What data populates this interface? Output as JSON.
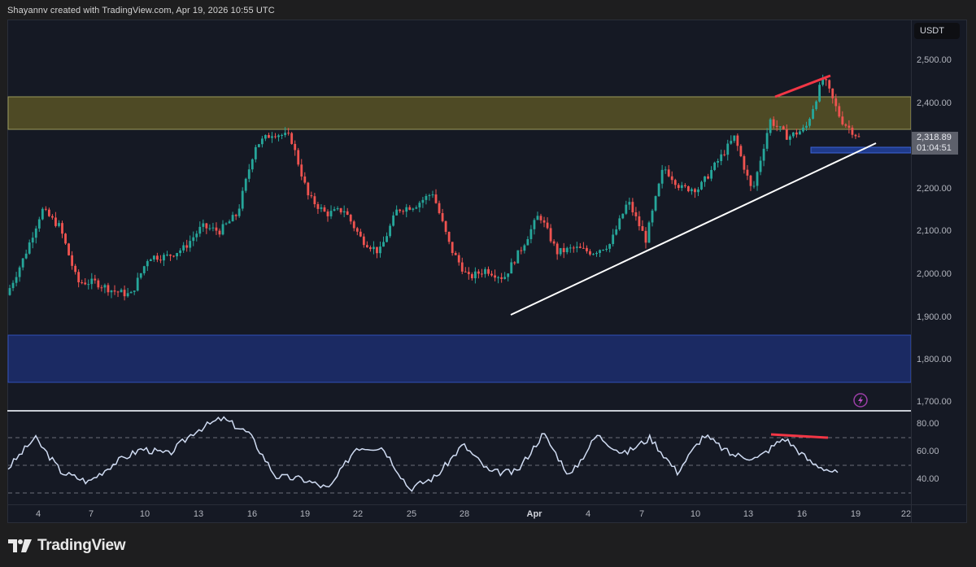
{
  "caption": "Shayannv created with TradingView.com, Apr 19, 2026 10:55 UTC",
  "brand": {
    "name": "TradingView",
    "icon": "tradingview-logo-icon"
  },
  "price_axis": {
    "currency": "USDT",
    "ticks": [
      "2,500.00",
      "2,400.00",
      "2,200.00",
      "2,100.00",
      "2,000.00",
      "1,900.00",
      "1,800.00",
      "1,700.00"
    ],
    "last_price": "2,318.89",
    "countdown": "01:04:51"
  },
  "rsi_axis": {
    "ticks": [
      "80.00",
      "60.00",
      "40.00"
    ]
  },
  "time_axis": {
    "ticks": [
      "4",
      "7",
      "10",
      "13",
      "16",
      "19",
      "22",
      "25",
      "28",
      "Apr",
      "4",
      "7",
      "10",
      "13",
      "16",
      "19",
      "22"
    ]
  },
  "colors": {
    "background": "#151924",
    "up_candle": "#26a69a",
    "down_candle": "#ef5350",
    "resistance_zone": "#4e4a25",
    "support_zone": "#1b2a63",
    "trendline": "#ffffff",
    "divergence": "#f23645",
    "rsi_line": "#c9d7f0"
  },
  "chart_data": [
    {
      "type": "candlestick",
      "title": "ETH/USDT 4H (approx.)",
      "xlabel": "",
      "ylabel": "USDT",
      "ylim": [
        1680,
        2540
      ],
      "x_ticks": [
        "Mar 4",
        "Mar 7",
        "Mar 10",
        "Mar 13",
        "Mar 16",
        "Mar 19",
        "Mar 22",
        "Mar 25",
        "Mar 28",
        "Apr",
        "Apr 4",
        "Apr 7",
        "Apr 10",
        "Apr 13",
        "Apr 16",
        "Apr 19",
        "Apr 22"
      ],
      "approx_close_path": [
        {
          "x": "Mar 2",
          "y": 1950
        },
        {
          "x": "Mar 3",
          "y": 2040
        },
        {
          "x": "Mar 4",
          "y": 2150
        },
        {
          "x": "Mar 5",
          "y": 2110
        },
        {
          "x": "Mar 6",
          "y": 1980
        },
        {
          "x": "Mar 7",
          "y": 1980
        },
        {
          "x": "Mar 8",
          "y": 1960
        },
        {
          "x": "Mar 9",
          "y": 1950
        },
        {
          "x": "Mar 10",
          "y": 2040
        },
        {
          "x": "Mar 11",
          "y": 2040
        },
        {
          "x": "Mar 12",
          "y": 2060
        },
        {
          "x": "Mar 13",
          "y": 2110
        },
        {
          "x": "Mar 14",
          "y": 2100
        },
        {
          "x": "Mar 15",
          "y": 2140
        },
        {
          "x": "Mar 16",
          "y": 2300
        },
        {
          "x": "Mar 17",
          "y": 2330
        },
        {
          "x": "Mar 18",
          "y": 2320
        },
        {
          "x": "Mar 19",
          "y": 2180
        },
        {
          "x": "Mar 20",
          "y": 2140
        },
        {
          "x": "Mar 21",
          "y": 2150
        },
        {
          "x": "Mar 22",
          "y": 2080
        },
        {
          "x": "Mar 23",
          "y": 2050
        },
        {
          "x": "Mar 24",
          "y": 2150
        },
        {
          "x": "Mar 25",
          "y": 2160
        },
        {
          "x": "Mar 26",
          "y": 2190
        },
        {
          "x": "Mar 27",
          "y": 2060
        },
        {
          "x": "Mar 28",
          "y": 1990
        },
        {
          "x": "Mar 29",
          "y": 2010
        },
        {
          "x": "Mar 30",
          "y": 1990
        },
        {
          "x": "Mar 31",
          "y": 2060
        },
        {
          "x": "Apr 1",
          "y": 2140
        },
        {
          "x": "Apr 2",
          "y": 2050
        },
        {
          "x": "Apr 3",
          "y": 2060
        },
        {
          "x": "Apr 4",
          "y": 2050
        },
        {
          "x": "Apr 5",
          "y": 2070
        },
        {
          "x": "Apr 6",
          "y": 2170
        },
        {
          "x": "Apr 7",
          "y": 2080
        },
        {
          "x": "Apr 8",
          "y": 2250
        },
        {
          "x": "Apr 9",
          "y": 2200
        },
        {
          "x": "Apr 10",
          "y": 2200
        },
        {
          "x": "Apr 11",
          "y": 2260
        },
        {
          "x": "Apr 12",
          "y": 2320
        },
        {
          "x": "Apr 13",
          "y": 2190
        },
        {
          "x": "Apr 14",
          "y": 2360
        },
        {
          "x": "Apr 15",
          "y": 2320
        },
        {
          "x": "Apr 16",
          "y": 2340
        },
        {
          "x": "Apr 17",
          "y": 2460
        },
        {
          "x": "Apr 18",
          "y": 2360
        },
        {
          "x": "Apr 19",
          "y": 2319
        }
      ],
      "zones": [
        {
          "name": "resistance",
          "from": 2340,
          "to": 2415,
          "color": "#4e4a25"
        },
        {
          "name": "support",
          "from": 1745,
          "to": 1855,
          "color": "#1b2a63"
        },
        {
          "name": "local-support",
          "from": 2285,
          "to": 2300,
          "color": "#1f3a8a"
        }
      ],
      "annotations": [
        {
          "type": "trendline",
          "from": {
            "x": "Mar 31",
            "y": 1905
          },
          "to": {
            "x": "Apr 19",
            "y": 2305
          },
          "color": "#ffffff"
        },
        {
          "type": "higher-high line",
          "from": {
            "x": "Apr 14",
            "y": 2415
          },
          "to": {
            "x": "Apr 17",
            "y": 2465
          },
          "color": "#f23645"
        }
      ],
      "last_price": 2318.89
    },
    {
      "type": "line",
      "title": "RSI",
      "ylim": [
        25,
        85
      ],
      "reference_lines": [
        70,
        50,
        30
      ],
      "y_ticks": [
        "80.00",
        "60.00",
        "40.00"
      ],
      "approx_values": [
        {
          "x": "Mar 2",
          "y": 48
        },
        {
          "x": "Mar 4",
          "y": 70
        },
        {
          "x": "Mar 6",
          "y": 45
        },
        {
          "x": "Mar 8",
          "y": 38
        },
        {
          "x": "Mar 10",
          "y": 52
        },
        {
          "x": "Mar 12",
          "y": 62
        },
        {
          "x": "Mar 14",
          "y": 58
        },
        {
          "x": "Mar 16",
          "y": 75
        },
        {
          "x": "Mar 17",
          "y": 84
        },
        {
          "x": "Mar 18",
          "y": 73
        },
        {
          "x": "Mar 19",
          "y": 42
        },
        {
          "x": "Mar 21",
          "y": 40
        },
        {
          "x": "Mar 23",
          "y": 33
        },
        {
          "x": "Mar 24",
          "y": 63
        },
        {
          "x": "Mar 26",
          "y": 63
        },
        {
          "x": "Mar 28",
          "y": 33
        },
        {
          "x": "Mar 30",
          "y": 42
        },
        {
          "x": "Apr 1",
          "y": 65
        },
        {
          "x": "Apr 3",
          "y": 45
        },
        {
          "x": "Apr 5",
          "y": 45
        },
        {
          "x": "Apr 7",
          "y": 73
        },
        {
          "x": "Apr 8",
          "y": 42
        },
        {
          "x": "Apr 9",
          "y": 72
        },
        {
          "x": "Apr 11",
          "y": 58
        },
        {
          "x": "Apr 12",
          "y": 70
        },
        {
          "x": "Apr 13",
          "y": 45
        },
        {
          "x": "Apr 14",
          "y": 72
        },
        {
          "x": "Apr 15",
          "y": 58
        },
        {
          "x": "Apr 16",
          "y": 55
        },
        {
          "x": "Apr 17",
          "y": 70
        },
        {
          "x": "Apr 18",
          "y": 52
        },
        {
          "x": "Apr 19",
          "y": 44
        }
      ],
      "annotations": [
        {
          "type": "bearish-divergence line",
          "from": {
            "x": "Apr 14",
            "y": 72
          },
          "to": {
            "x": "Apr 17",
            "y": 70
          },
          "color": "#f23645"
        }
      ]
    }
  ]
}
